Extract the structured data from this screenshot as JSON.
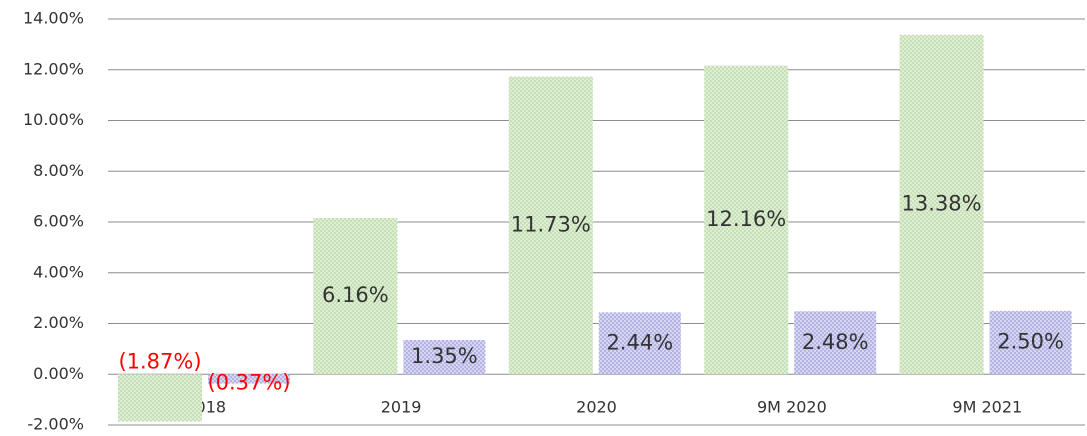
{
  "chart_data": {
    "type": "bar",
    "categories": [
      "2018",
      "2019",
      "2020",
      "9M 2020",
      "9M 2021"
    ],
    "series": [
      {
        "color": "#c5e0b4",
        "values": [
          -1.87,
          6.16,
          11.73,
          12.16,
          13.38
        ],
        "value_labels": [
          "(1.87%)",
          "6.16%",
          "11.73%",
          "12.16%",
          "13.38%"
        ]
      },
      {
        "color": "#b4b4e6",
        "values": [
          -0.37,
          1.35,
          2.44,
          2.48,
          2.5
        ],
        "value_labels": [
          "(0.37%)",
          "1.35%",
          "2.44%",
          "2.48%",
          "2.50%"
        ]
      }
    ],
    "negative_label_color": "#ff0000",
    "ylim": [
      -2,
      14
    ],
    "yticks": [
      {
        "value": -2,
        "label": "-2.00%"
      },
      {
        "value": 0,
        "label": "0.00%"
      },
      {
        "value": 2,
        "label": "2.00%"
      },
      {
        "value": 4,
        "label": "4.00%"
      },
      {
        "value": 6,
        "label": "6.00%"
      },
      {
        "value": 8,
        "label": "8.00%"
      },
      {
        "value": 10,
        "label": "10.00%"
      },
      {
        "value": 12,
        "label": "12.00%"
      },
      {
        "value": 14,
        "label": "14.00%"
      }
    ],
    "grid": true
  }
}
